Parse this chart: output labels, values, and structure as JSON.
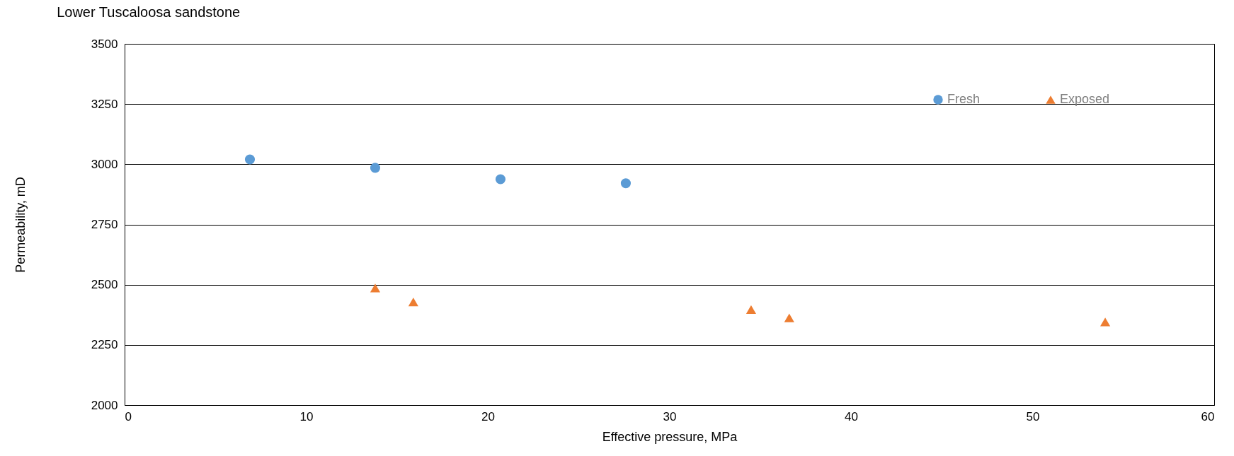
{
  "chart_data": {
    "type": "scatter",
    "title": "Lower Tuscaloosa sandstone",
    "xlabel": "Effective pressure, MPa",
    "ylabel": "Permeability, mD",
    "series": [
      {
        "name": "Fresh",
        "color": "#5b9bd5",
        "marker": "circle",
        "x": [
          6.9,
          13.8,
          20.7,
          27.6
        ],
        "values": [
          3020,
          2985,
          2938,
          2921
        ]
      },
      {
        "name": "Exposed",
        "color": "#ed7d31",
        "marker": "triangle",
        "x": [
          13.8,
          15.9,
          34.5,
          36.6,
          54.0
        ],
        "values": [
          2486,
          2428,
          2397,
          2362,
          2345
        ]
      }
    ],
    "xlim": [
      0,
      60
    ],
    "xticks": [
      0,
      10,
      20,
      30,
      40,
      50,
      60
    ],
    "ylim": [
      2000,
      3500
    ],
    "yticks": [
      2000,
      2250,
      2500,
      2750,
      3000,
      3250,
      3500
    ],
    "grid": "y",
    "legend": "top right"
  }
}
